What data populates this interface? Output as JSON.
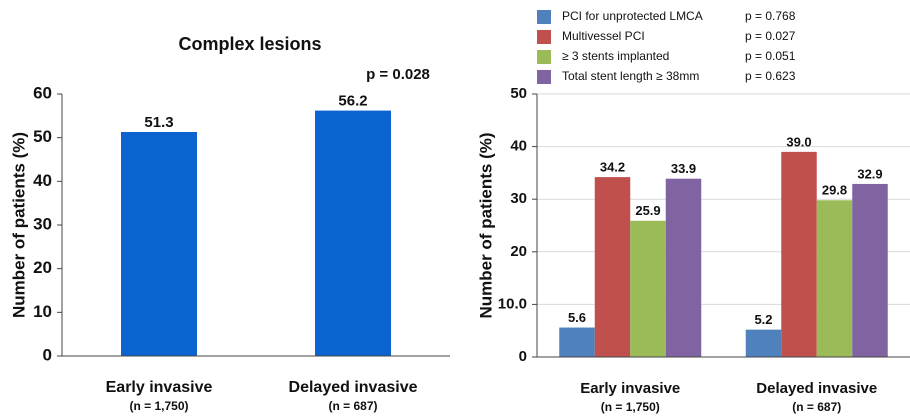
{
  "chart_data": [
    {
      "type": "bar",
      "title": "Complex lesions",
      "annotation": "p = 0.028",
      "y_label": "Number of patients (%)",
      "categories": [
        "Early invasive",
        "Delayed invasive"
      ],
      "category_sublabels": [
        "(n = 1,750)",
        "(n = 687)"
      ],
      "values": [
        51.3,
        56.2
      ],
      "color": "#0b63cf",
      "ylim": [
        0,
        60
      ],
      "yticks": [
        0,
        10,
        20,
        30,
        40,
        50,
        60
      ],
      "grid": false
    },
    {
      "type": "bar",
      "y_label": "Number of patients (%)",
      "categories": [
        "Early invasive",
        "Delayed invasive"
      ],
      "category_sublabels": [
        "(n = 1,750)",
        "(n = 687)"
      ],
      "series": [
        {
          "name": "PCI for unprotected LMCA",
          "legend_note": "p = 0.768",
          "color": "#4f81bd",
          "values": [
            5.6,
            5.2
          ],
          "value_labels": [
            "5.6",
            "5.2"
          ]
        },
        {
          "name": "Multivessel PCI",
          "legend_note": "p = 0.027",
          "color": "#c0504d",
          "values": [
            34.2,
            39.0
          ],
          "value_labels": [
            "34.2",
            "39.0"
          ]
        },
        {
          "name": "≥ 3 stents implanted",
          "legend_note": "p = 0.051",
          "color": "#9bbb59",
          "values": [
            25.9,
            29.8
          ],
          "value_labels": [
            "25.9",
            "29.8"
          ]
        },
        {
          "name": "Total stent length ≥ 38mm",
          "legend_note": "p = 0.623",
          "color": "#8064a2",
          "values": [
            33.9,
            32.9
          ],
          "value_labels": [
            "33.9",
            "32.9"
          ]
        }
      ],
      "ylim": [
        0,
        50
      ],
      "yticks": [
        0,
        {
          "value": 10,
          "label": "10.0"
        },
        20,
        30,
        40,
        50
      ],
      "grid": true,
      "legend": "top"
    }
  ]
}
